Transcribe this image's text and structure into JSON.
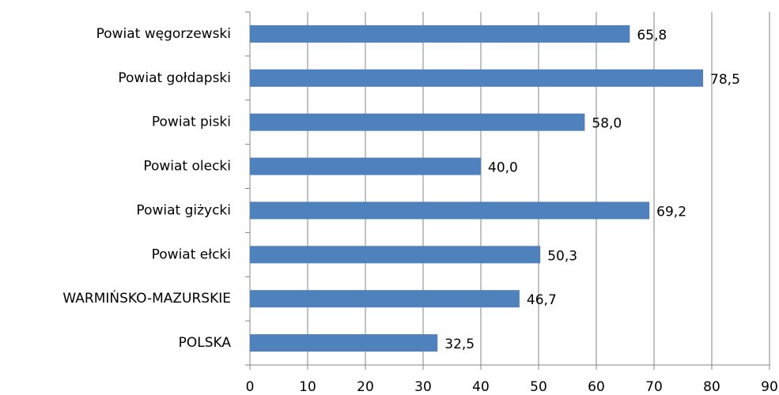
{
  "chart_data": {
    "type": "bar",
    "orientation": "horizontal",
    "categories": [
      "Powiat węgorzewski",
      "Powiat gołdapski",
      "Powiat piski",
      "Powiat olecki",
      "Powiat giżycki",
      "Powiat ełcki",
      "WARMIŃSKO-MAZURSKIE",
      "POLSKA"
    ],
    "values": [
      65.8,
      78.5,
      58.0,
      40.0,
      69.2,
      50.3,
      46.7,
      32.5
    ],
    "value_labels": [
      "65,8",
      "78,5",
      "58,0",
      "40,0",
      "69,2",
      "50,3",
      "46,7",
      "32,5"
    ],
    "color": "#4f81bd",
    "xlim": [
      0,
      90
    ],
    "xticks": [
      0,
      10,
      20,
      30,
      40,
      50,
      60,
      70,
      80,
      90
    ],
    "grid": true
  }
}
